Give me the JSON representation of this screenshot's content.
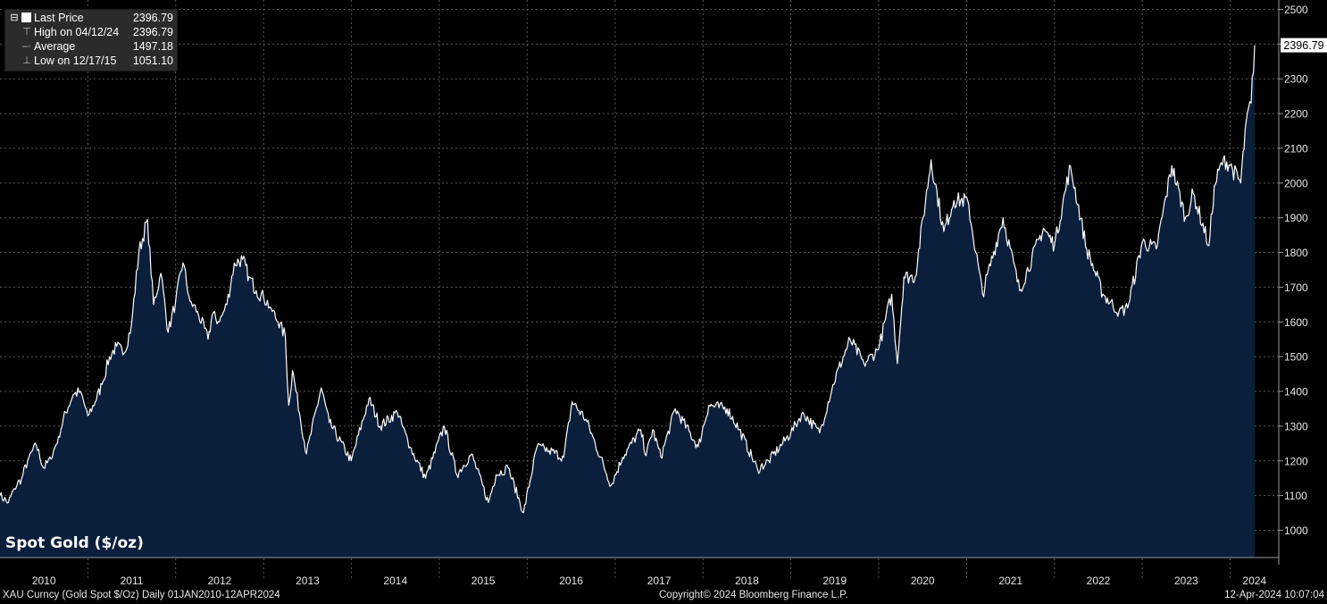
{
  "legend": {
    "last_price_label": "Last Price",
    "last_price_value": "2396.79",
    "high_label": "High on 04/12/24",
    "high_value": "2396.79",
    "avg_label": "Average",
    "avg_value": "1497.18",
    "low_label": "Low on 12/17/15",
    "low_value": "1051.10"
  },
  "footer": {
    "left": "XAU Curncy (Gold Spot  $/Oz)  Daily 01JAN2010-12APR2024",
    "center": "Copyright© 2024 Bloomberg Finance L.P.",
    "right": "12-Apr-2024 10:07:04"
  },
  "colors": {
    "background": "#000000",
    "area_fill": "#0b1e3b",
    "line": "#ffffff",
    "last_tag_bg": "#ffffff"
  },
  "chart_data": {
    "type": "area",
    "title": "Spot Gold ($/oz)",
    "ylim": [
      950,
      2520
    ],
    "yticks": [
      1000,
      1100,
      1200,
      1300,
      1400,
      1500,
      1600,
      1700,
      1800,
      1900,
      2000,
      2100,
      2200,
      2300,
      2400,
      2500
    ],
    "ytick_labels": [
      "1000",
      "1100",
      "1200",
      "1300",
      "1400",
      "1500",
      "1600",
      "1700",
      "1800",
      "1900",
      "2000",
      "2100",
      "2200",
      "2300",
      "2400",
      "2500"
    ],
    "xtick_labels": [
      "2010",
      "2011",
      "2012",
      "2013",
      "2014",
      "2015",
      "2016",
      "2017",
      "2018",
      "2019",
      "2020",
      "2021",
      "2022",
      "2023",
      "2024"
    ],
    "grid": true,
    "last_value_label": "2396.79",
    "x": [
      "2010-01-01",
      "2010-02-05",
      "2010-03-01",
      "2010-04-01",
      "2010-05-01",
      "2010-06-01",
      "2010-07-01",
      "2010-08-01",
      "2010-09-01",
      "2010-10-01",
      "2010-11-01",
      "2010-12-01",
      "2011-01-01",
      "2011-02-01",
      "2011-03-01",
      "2011-04-01",
      "2011-05-01",
      "2011-06-01",
      "2011-07-01",
      "2011-08-01",
      "2011-09-06",
      "2011-10-01",
      "2011-11-01",
      "2011-12-01",
      "2012-01-01",
      "2012-02-01",
      "2012-03-01",
      "2012-04-01",
      "2012-05-15",
      "2012-06-01",
      "2012-07-01",
      "2012-08-01",
      "2012-09-01",
      "2012-10-05",
      "2012-11-01",
      "2012-12-01",
      "2013-01-01",
      "2013-02-01",
      "2013-03-01",
      "2013-04-01",
      "2013-04-15",
      "2013-05-01",
      "2013-06-28",
      "2013-08-28",
      "2013-10-01",
      "2013-12-31",
      "2014-03-15",
      "2014-05-01",
      "2014-07-10",
      "2014-09-01",
      "2014-11-05",
      "2015-01-22",
      "2015-03-15",
      "2015-05-15",
      "2015-07-24",
      "2015-08-25",
      "2015-10-14",
      "2015-12-17",
      "2016-02-11",
      "2016-04-01",
      "2016-06-01",
      "2016-07-06",
      "2016-09-01",
      "2016-10-10",
      "2016-12-15",
      "2017-02-01",
      "2017-04-17",
      "2017-05-10",
      "2017-06-06",
      "2017-07-10",
      "2017-09-08",
      "2017-12-12",
      "2018-01-25",
      "2018-04-11",
      "2018-06-01",
      "2018-08-16",
      "2018-10-01",
      "2019-01-01",
      "2019-02-20",
      "2019-05-01",
      "2019-06-25",
      "2019-09-04",
      "2019-11-01",
      "2019-12-31",
      "2020-02-24",
      "2020-03-19",
      "2020-04-15",
      "2020-06-01",
      "2020-08-06",
      "2020-09-28",
      "2020-11-09",
      "2021-01-05",
      "2021-03-08",
      "2021-06-01",
      "2021-08-09",
      "2021-11-16",
      "2022-01-01",
      "2022-03-08",
      "2022-05-15",
      "2022-07-21",
      "2022-09-26",
      "2022-11-01",
      "2023-01-01",
      "2023-02-28",
      "2023-05-04",
      "2023-06-29",
      "2023-08-01",
      "2023-10-05",
      "2023-10-27",
      "2023-12-04",
      "2024-01-01",
      "2024-02-14",
      "2024-03-08",
      "2024-03-28",
      "2024-04-12"
    ],
    "values": [
      1100,
      1080,
      1120,
      1150,
      1210,
      1245,
      1180,
      1205,
      1270,
      1340,
      1390,
      1400,
      1330,
      1370,
      1420,
      1500,
      1530,
      1510,
      1590,
      1800,
      1895,
      1650,
      1740,
      1570,
      1660,
      1770,
      1660,
      1630,
      1550,
      1620,
      1600,
      1650,
      1770,
      1780,
      1730,
      1690,
      1670,
      1640,
      1600,
      1560,
      1360,
      1460,
      1220,
      1410,
      1310,
      1200,
      1380,
      1300,
      1340,
      1240,
      1150,
      1300,
      1160,
      1220,
      1080,
      1160,
      1180,
      1051,
      1240,
      1230,
      1210,
      1370,
      1320,
      1250,
      1130,
      1210,
      1290,
      1215,
      1290,
      1210,
      1350,
      1240,
      1360,
      1350,
      1290,
      1175,
      1200,
      1280,
      1340,
      1280,
      1420,
      1550,
      1480,
      1520,
      1680,
      1480,
      1730,
      1730,
      2067,
      1860,
      1950,
      1950,
      1680,
      1900,
      1690,
      1870,
      1820,
      2050,
      1810,
      1680,
      1630,
      1640,
      1830,
      1810,
      2050,
      1900,
      1970,
      1820,
      1990,
      2070,
      2050,
      2000,
      2180,
      2230,
      2396.79
    ]
  }
}
